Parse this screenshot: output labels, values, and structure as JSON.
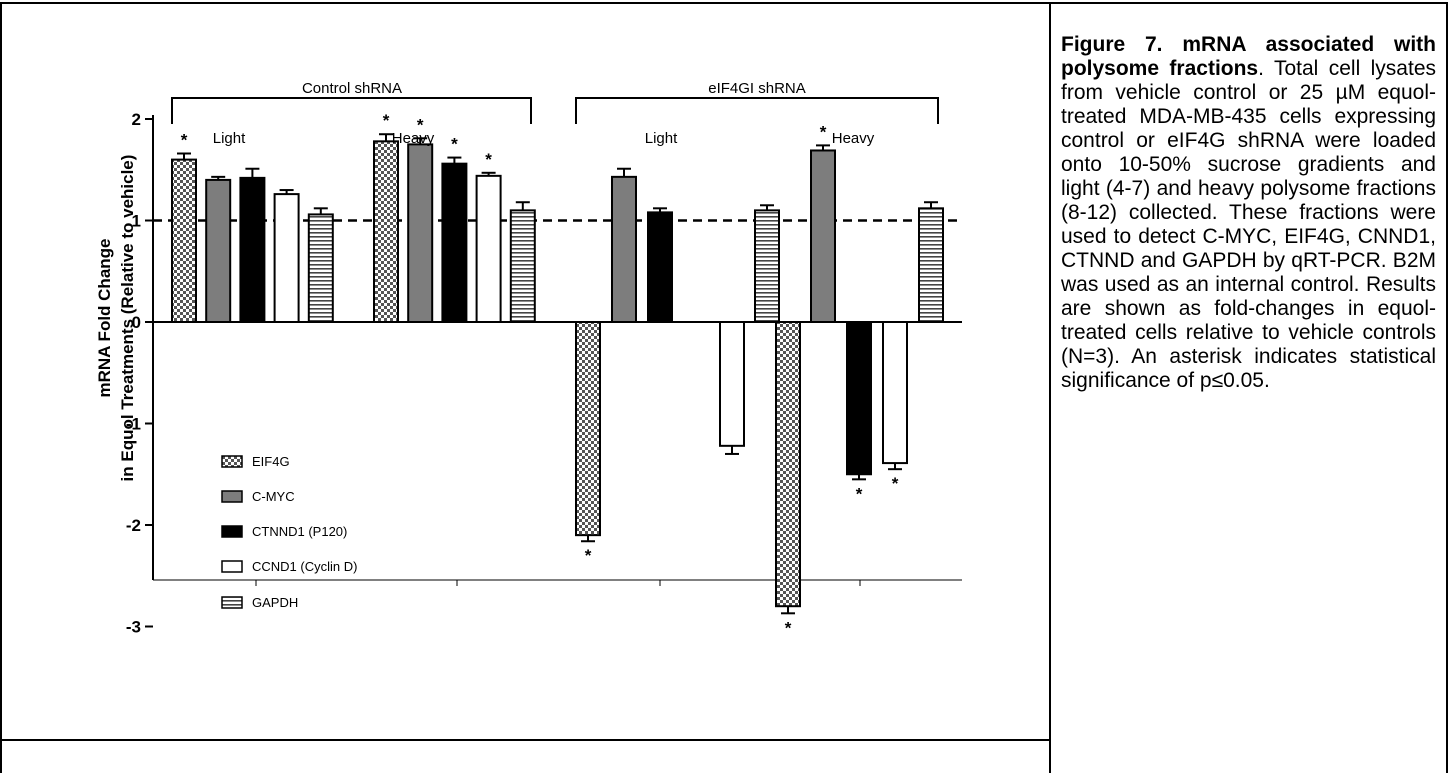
{
  "caption": {
    "label": "Figure 7.",
    "bold_title": "mRNA associated with polysome fractions",
    "body": ". Total cell lysates from vehicle control or 25 µM equol-treated MDA-MB-435 cells expressing control or eIF4G shRNA were loaded onto 10-50% sucrose gradients and light (4-7) and heavy polysome fractions (8-12) collected. These fractions were used to detect C-MYC, EIF4G, CNND1, CTNND and GAPDH by qRT-PCR. B2M was used as an internal control. Results are shown as fold-changes in equol-treated cells relative to vehicle controls (N=3). An asterisk indicates statistical significance of p≤0.05."
  },
  "chart_data": {
    "type": "bar",
    "ylabel_line1": "mRNA Fold Change",
    "ylabel_line2": "in Equol Treatments  (Relative to vehicle)",
    "ylim": [
      -3.2,
      2.5
    ],
    "yticks": [
      -3,
      -2,
      -1,
      0,
      1,
      2
    ],
    "reference_line": 1,
    "groups": [
      {
        "label": "Control shRNA",
        "subgroups": [
          "Light",
          "Heavy"
        ]
      },
      {
        "label": "eIF4GI shRNA",
        "subgroups": [
          "Light",
          "Heavy"
        ]
      }
    ],
    "series": [
      {
        "name": "EIF4G",
        "pattern": "checker",
        "values": [
          1.6,
          1.78,
          -2.1,
          -2.8
        ],
        "errors": [
          0.06,
          0.07,
          0.06,
          0.07
        ],
        "significant": [
          true,
          true,
          true,
          true
        ]
      },
      {
        "name": "C-MYC",
        "pattern": "gray",
        "values": [
          1.4,
          1.75,
          1.43,
          1.69
        ],
        "errors": [
          0.03,
          0.06,
          0.08,
          0.05
        ],
        "significant": [
          false,
          true,
          false,
          true
        ]
      },
      {
        "name": "CTNND1 (P120)",
        "pattern": "black",
        "values": [
          1.42,
          1.56,
          1.08,
          -1.5
        ],
        "errors": [
          0.09,
          0.06,
          0.04,
          0.05
        ],
        "significant": [
          false,
          true,
          false,
          true
        ]
      },
      {
        "name": "CCND1 (Cyclin D)",
        "pattern": "white",
        "values": [
          1.26,
          1.44,
          -1.22,
          -1.39
        ],
        "errors": [
          0.04,
          0.03,
          0.08,
          0.06
        ],
        "significant": [
          false,
          true,
          false,
          true
        ]
      },
      {
        "name": "GAPDH",
        "pattern": "hstripe",
        "values": [
          1.06,
          1.1,
          1.1,
          1.12
        ],
        "errors": [
          0.06,
          0.08,
          0.05,
          0.06
        ],
        "significant": [
          false,
          false,
          false,
          false
        ]
      }
    ],
    "significance_marker": "*",
    "legend_position": "lower-left",
    "grid": false
  }
}
